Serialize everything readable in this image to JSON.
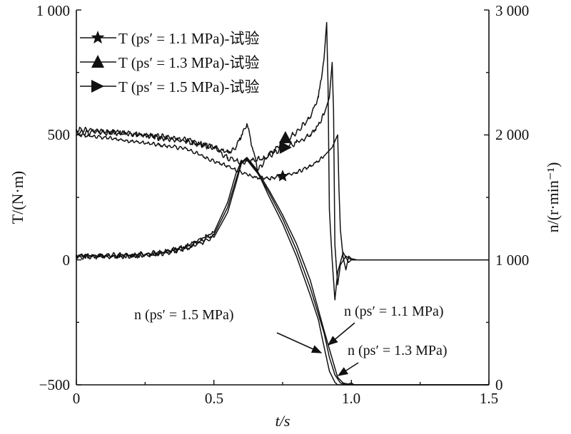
{
  "chart_data": {
    "type": "line",
    "xlabel": "t/s",
    "ylabel_left": "T/(N·m)",
    "ylabel_right": "n/(r·min⁻¹)",
    "xlim": [
      0,
      1.5
    ],
    "ylim_left": [
      -500,
      1000
    ],
    "ylim_right": [
      0,
      3000
    ],
    "x_ticks": [
      "0",
      "0.5",
      "1.0",
      "1.5"
    ],
    "y_left_ticks": [
      "−500",
      "0",
      "500",
      "1 000"
    ],
    "y_right_ticks": [
      "0",
      "1 000",
      "2 000",
      "3 000"
    ],
    "grid": false,
    "legend_position": "top-left",
    "legend": [
      {
        "label": "T (ps′ = 1.1 MPa)-试验",
        "marker": "star"
      },
      {
        "label": "T (ps′ = 1.3 MPa)-试验",
        "marker": "triangle-up"
      },
      {
        "label": "T (ps′ = 1.5 MPa)-试验",
        "marker": "triangle-right"
      }
    ],
    "series": [
      {
        "name": "T (ps′ = 1.1 MPa)-试验",
        "axis": "left",
        "marker": "star",
        "marker_at": [
          0.75,
          335
        ],
        "noise": 8,
        "points": [
          [
            0,
            500
          ],
          [
            0.1,
            490
          ],
          [
            0.2,
            475
          ],
          [
            0.3,
            460
          ],
          [
            0.4,
            445
          ],
          [
            0.5,
            395
          ],
          [
            0.55,
            375
          ],
          [
            0.6,
            350
          ],
          [
            0.65,
            330
          ],
          [
            0.7,
            325
          ],
          [
            0.75,
            335
          ],
          [
            0.8,
            350
          ],
          [
            0.85,
            375
          ],
          [
            0.88,
            395
          ],
          [
            0.9,
            415
          ],
          [
            0.93,
            450
          ],
          [
            0.95,
            500
          ],
          [
            0.955,
            275
          ],
          [
            0.96,
            120
          ],
          [
            0.97,
            10
          ],
          [
            0.98,
            -40
          ],
          [
            0.99,
            15
          ],
          [
            1.0,
            5
          ],
          [
            1.02,
            0
          ],
          [
            1.5,
            0
          ]
        ]
      },
      {
        "name": "T (ps′ = 1.3 MPa)-试验",
        "axis": "left",
        "marker": "triangle-up",
        "marker_at": [
          0.76,
          490
        ],
        "noise": 12,
        "points": [
          [
            0,
            510
          ],
          [
            0.1,
            510
          ],
          [
            0.2,
            505
          ],
          [
            0.3,
            495
          ],
          [
            0.4,
            480
          ],
          [
            0.5,
            450
          ],
          [
            0.55,
            430
          ],
          [
            0.58,
            450
          ],
          [
            0.6,
            500
          ],
          [
            0.62,
            545
          ],
          [
            0.64,
            450
          ],
          [
            0.66,
            360
          ],
          [
            0.7,
            420
          ],
          [
            0.75,
            470
          ],
          [
            0.8,
            510
          ],
          [
            0.85,
            570
          ],
          [
            0.88,
            650
          ],
          [
            0.9,
            800
          ],
          [
            0.91,
            950
          ],
          [
            0.915,
            700
          ],
          [
            0.92,
            200
          ],
          [
            0.93,
            0
          ],
          [
            0.94,
            -160
          ],
          [
            0.95,
            -50
          ],
          [
            0.97,
            30
          ],
          [
            0.99,
            -10
          ],
          [
            1.0,
            0
          ],
          [
            1.5,
            0
          ]
        ]
      },
      {
        "name": "T (ps′ = 1.5 MPa)-试验",
        "axis": "left",
        "marker": "triangle-right",
        "marker_at": [
          0.76,
          450
        ],
        "noise": 12,
        "points": [
          [
            0,
            520
          ],
          [
            0.1,
            515
          ],
          [
            0.2,
            505
          ],
          [
            0.3,
            490
          ],
          [
            0.4,
            475
          ],
          [
            0.5,
            450
          ],
          [
            0.55,
            410
          ],
          [
            0.6,
            390
          ],
          [
            0.64,
            400
          ],
          [
            0.68,
            405
          ],
          [
            0.72,
            430
          ],
          [
            0.76,
            450
          ],
          [
            0.8,
            470
          ],
          [
            0.85,
            500
          ],
          [
            0.88,
            540
          ],
          [
            0.9,
            580
          ],
          [
            0.92,
            650
          ],
          [
            0.93,
            790
          ],
          [
            0.935,
            600
          ],
          [
            0.94,
            60
          ],
          [
            0.95,
            -100
          ],
          [
            0.96,
            -20
          ],
          [
            0.98,
            15
          ],
          [
            1.0,
            0
          ],
          [
            1.5,
            0
          ]
        ]
      },
      {
        "name": "n (ps′ = 1.1 MPa)",
        "axis": "right",
        "points": [
          [
            0,
            1030
          ],
          [
            0.2,
            1030
          ],
          [
            0.3,
            1050
          ],
          [
            0.4,
            1100
          ],
          [
            0.5,
            1200
          ],
          [
            0.55,
            1420
          ],
          [
            0.58,
            1640
          ],
          [
            0.6,
            1780
          ],
          [
            0.62,
            1820
          ],
          [
            0.65,
            1740
          ],
          [
            0.7,
            1560
          ],
          [
            0.75,
            1360
          ],
          [
            0.8,
            1130
          ],
          [
            0.85,
            840
          ],
          [
            0.9,
            440
          ],
          [
            0.93,
            210
          ],
          [
            0.95,
            60
          ],
          [
            0.97,
            15
          ],
          [
            1.0,
            0
          ],
          [
            1.5,
            0
          ]
        ]
      },
      {
        "name": "n (ps′ = 1.3 MPa)",
        "axis": "right",
        "points": [
          [
            0,
            1035
          ],
          [
            0.2,
            1040
          ],
          [
            0.3,
            1060
          ],
          [
            0.4,
            1110
          ],
          [
            0.5,
            1220
          ],
          [
            0.55,
            1460
          ],
          [
            0.58,
            1690
          ],
          [
            0.6,
            1790
          ],
          [
            0.62,
            1800
          ],
          [
            0.66,
            1690
          ],
          [
            0.7,
            1540
          ],
          [
            0.75,
            1330
          ],
          [
            0.8,
            1080
          ],
          [
            0.85,
            780
          ],
          [
            0.9,
            420
          ],
          [
            0.92,
            220
          ],
          [
            0.94,
            80
          ],
          [
            0.96,
            15
          ],
          [
            0.98,
            0
          ],
          [
            1.0,
            15
          ],
          [
            1.01,
            0
          ],
          [
            1.5,
            0
          ]
        ]
      },
      {
        "name": "n (ps′ = 1.5 MPa)",
        "axis": "right",
        "points": [
          [
            0,
            1025
          ],
          [
            0.2,
            1030
          ],
          [
            0.3,
            1045
          ],
          [
            0.4,
            1090
          ],
          [
            0.5,
            1180
          ],
          [
            0.55,
            1380
          ],
          [
            0.58,
            1610
          ],
          [
            0.6,
            1770
          ],
          [
            0.62,
            1810
          ],
          [
            0.66,
            1700
          ],
          [
            0.7,
            1510
          ],
          [
            0.75,
            1290
          ],
          [
            0.8,
            1030
          ],
          [
            0.85,
            720
          ],
          [
            0.88,
            520
          ],
          [
            0.9,
            310
          ],
          [
            0.92,
            110
          ],
          [
            0.94,
            20
          ],
          [
            0.95,
            0
          ],
          [
            1.5,
            0
          ]
        ]
      }
    ],
    "annotations": [
      {
        "text": "n (ps′ = 1.5 MPa)",
        "points_to": "n (ps′ = 1.5 MPa)"
      },
      {
        "text": "n (ps′ = 1.1 MPa)",
        "points_to": "n (ps′ = 1.1 MPa)"
      },
      {
        "text": "n (ps′ = 1.3 MPa)",
        "points_to": "n (ps′ = 1.3 MPa)"
      }
    ]
  }
}
